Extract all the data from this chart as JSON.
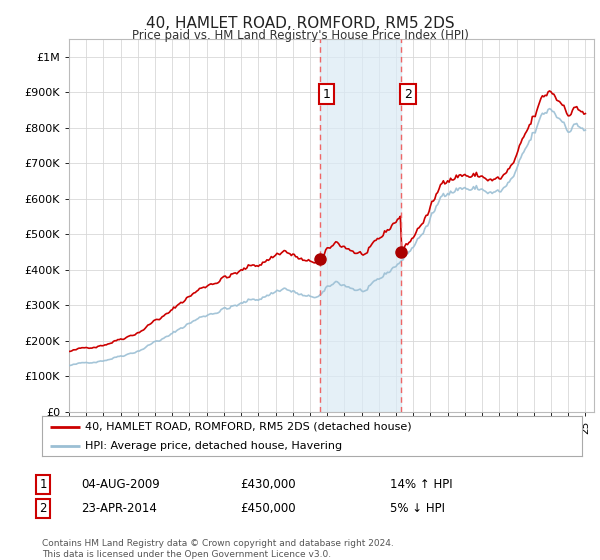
{
  "title": "40, HAMLET ROAD, ROMFORD, RM5 2DS",
  "subtitle": "Price paid vs. HM Land Registry's House Price Index (HPI)",
  "legend_line1": "40, HAMLET ROAD, ROMFORD, RM5 2DS (detached house)",
  "legend_line2": "HPI: Average price, detached house, Havering",
  "transaction1_date": "04-AUG-2009",
  "transaction1_price": 430000,
  "transaction1_hpi": "14% ↑ HPI",
  "transaction2_date": "23-APR-2014",
  "transaction2_price": 450000,
  "transaction2_hpi": "5% ↓ HPI",
  "footer": "Contains HM Land Registry data © Crown copyright and database right 2024.\nThis data is licensed under the Open Government Licence v3.0.",
  "price_line_color": "#cc0000",
  "hpi_line_color": "#9bbfd4",
  "hpi_fill_color": "#daeaf5",
  "vline_color": "#ee6666",
  "ylim": [
    0,
    1050000
  ],
  "yticks": [
    0,
    100000,
    200000,
    300000,
    400000,
    500000,
    600000,
    700000,
    800000,
    900000,
    1000000
  ],
  "ytick_labels": [
    "£0",
    "£100K",
    "£200K",
    "£300K",
    "£400K",
    "£500K",
    "£600K",
    "£700K",
    "£800K",
    "£900K",
    "£1M"
  ],
  "background_color": "#ffffff",
  "grid_color": "#d8d8d8",
  "transaction1_x": 2009.583,
  "transaction2_x": 2014.31,
  "xlim_left": 1995.0,
  "xlim_right": 2025.5
}
